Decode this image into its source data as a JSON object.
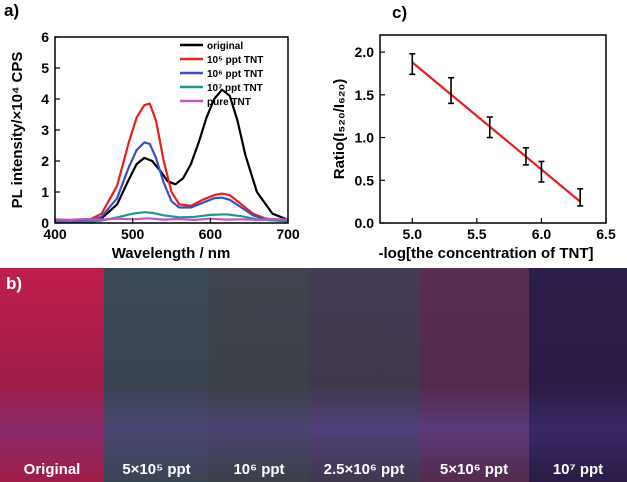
{
  "chart_data": [
    {
      "panel": "a)",
      "type": "line",
      "xlabel": "Wavelength / nm",
      "ylabel": "PL intensity/×10⁴ CPS",
      "xlim": [
        400,
        700
      ],
      "ylim": [
        0,
        6
      ],
      "x_ticks": [
        "400",
        "500",
        "600",
        "700"
      ],
      "y_ticks": [
        "0",
        "1",
        "2",
        "3",
        "4",
        "5",
        "6"
      ],
      "legend_position": "top-right",
      "series": [
        {
          "name": "original",
          "color": "#000000",
          "x": [
            400,
            440,
            460,
            480,
            495,
            505,
            515,
            525,
            535,
            545,
            555,
            565,
            575,
            585,
            595,
            605,
            615,
            625,
            635,
            645,
            660,
            680,
            700
          ],
          "y": [
            0.05,
            0.05,
            0.15,
            0.6,
            1.4,
            1.9,
            2.1,
            2.0,
            1.7,
            1.35,
            1.25,
            1.45,
            1.9,
            2.6,
            3.4,
            4.0,
            4.3,
            4.1,
            3.3,
            2.2,
            1.0,
            0.3,
            0.1
          ]
        },
        {
          "name": "10⁵ ppt TNT",
          "color": "#e8201c",
          "x": [
            400,
            440,
            460,
            480,
            495,
            505,
            515,
            522,
            530,
            540,
            550,
            560,
            575,
            590,
            605,
            615,
            625,
            640,
            655,
            670,
            700
          ],
          "y": [
            0.05,
            0.05,
            0.3,
            1.2,
            2.6,
            3.4,
            3.8,
            3.85,
            3.3,
            2.0,
            1.0,
            0.6,
            0.55,
            0.75,
            0.9,
            0.95,
            0.9,
            0.6,
            0.3,
            0.15,
            0.05
          ]
        },
        {
          "name": "10⁶ ppt TNT",
          "color": "#3a4fc1",
          "x": [
            400,
            440,
            460,
            480,
            495,
            505,
            515,
            522,
            530,
            540,
            550,
            560,
            575,
            590,
            605,
            615,
            625,
            640,
            655,
            670,
            700
          ],
          "y": [
            0.05,
            0.05,
            0.2,
            0.8,
            1.8,
            2.35,
            2.6,
            2.55,
            2.1,
            1.3,
            0.7,
            0.5,
            0.5,
            0.65,
            0.8,
            0.82,
            0.75,
            0.5,
            0.25,
            0.12,
            0.05
          ]
        },
        {
          "name": "10⁷ ppt TNT",
          "color": "#1a9a8e",
          "x": [
            400,
            440,
            460,
            480,
            500,
            515,
            525,
            540,
            560,
            580,
            600,
            620,
            640,
            660,
            700
          ],
          "y": [
            0.03,
            0.03,
            0.08,
            0.18,
            0.3,
            0.35,
            0.33,
            0.25,
            0.18,
            0.2,
            0.26,
            0.28,
            0.22,
            0.12,
            0.05
          ]
        },
        {
          "name": "pure TNT",
          "color": "#c456c4",
          "x": [
            400,
            420,
            440,
            460,
            480,
            500,
            520,
            540,
            560,
            580,
            600,
            620,
            640,
            660,
            680,
            700
          ],
          "y": [
            0.12,
            0.1,
            0.13,
            0.11,
            0.14,
            0.12,
            0.15,
            0.11,
            0.13,
            0.1,
            0.14,
            0.11,
            0.12,
            0.1,
            0.13,
            0.11
          ]
        }
      ]
    },
    {
      "panel": "c)",
      "type": "scatter",
      "xlabel": "-log[the concentration of TNT]",
      "ylabel": "Ratio(I₅₂₀/I₆₂₀)",
      "xlim": [
        4.75,
        6.5
      ],
      "ylim": [
        0.0,
        2.2
      ],
      "x_ticks": [
        "5.0",
        "5.5",
        "6.0",
        "6.5"
      ],
      "y_ticks": [
        "0.0",
        "0.5",
        "1.0",
        "1.5",
        "2.0"
      ],
      "points": [
        {
          "x": 5.0,
          "y": 1.86,
          "err": 0.12
        },
        {
          "x": 5.3,
          "y": 1.55,
          "err": 0.15
        },
        {
          "x": 5.6,
          "y": 1.12,
          "err": 0.12
        },
        {
          "x": 5.88,
          "y": 0.78,
          "err": 0.1
        },
        {
          "x": 6.0,
          "y": 0.6,
          "err": 0.12
        },
        {
          "x": 6.3,
          "y": 0.3,
          "err": 0.1
        }
      ],
      "fit_line": {
        "color": "#e8201c",
        "x": [
          5.0,
          6.3
        ],
        "y": [
          1.88,
          0.25
        ]
      },
      "point_color": "#000000"
    }
  ],
  "photo_panel": {
    "label": "b)",
    "strips": [
      {
        "label": "Original",
        "color_top": "#c01e4c",
        "color_mid": "#a01c48",
        "color_bottom": "#8a2a6a"
      },
      {
        "label": "5×10⁵ ppt",
        "color_top": "#3c4a56",
        "color_mid": "#3a4452",
        "color_bottom": "#4a4672"
      },
      {
        "label": "10⁶ ppt",
        "color_top": "#40444e",
        "color_mid": "#3c4048",
        "color_bottom": "#4a4270"
      },
      {
        "label": "2.5×10⁶ ppt",
        "color_top": "#443c54",
        "color_mid": "#40384e",
        "color_bottom": "#50407a"
      },
      {
        "label": "5×10⁶ ppt",
        "color_top": "#5a2e52",
        "color_mid": "#542a4e",
        "color_bottom": "#5a3a78"
      },
      {
        "label": "10⁷ ppt",
        "color_top": "#2c1e4a",
        "color_mid": "#2a1c44",
        "color_bottom": "#3a2868"
      }
    ]
  }
}
